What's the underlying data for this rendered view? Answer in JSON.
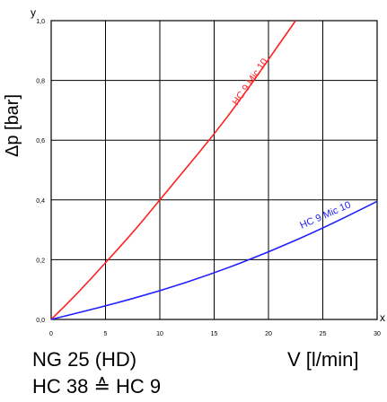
{
  "chart_data": {
    "type": "line",
    "title": "",
    "xlabel": "V [l/min]",
    "ylabel": "Δp [bar]",
    "x_axis_letter": "x",
    "y_axis_letter": "y",
    "xlim": [
      0,
      30
    ],
    "ylim": [
      0,
      1.0
    ],
    "x_ticks": [
      0,
      5,
      10,
      15,
      20,
      25,
      30
    ],
    "x_tick_labels": [
      "0",
      "5",
      "10",
      "15",
      "20",
      "25",
      "30"
    ],
    "y_ticks": [
      0,
      0.2,
      0.4,
      0.6,
      0.8,
      1.0
    ],
    "y_tick_labels": [
      "0,0",
      "0,2",
      "0,4",
      "0,6",
      "0,8",
      "1,0"
    ],
    "grid": true,
    "series": [
      {
        "name": "HC 9 Mic 10",
        "color": "#ff2020",
        "x": [
          0,
          2.5,
          5,
          7.5,
          10,
          12.5,
          15,
          17.5,
          20,
          22.5
        ],
        "y": [
          0,
          0.09,
          0.19,
          0.29,
          0.4,
          0.51,
          0.62,
          0.74,
          0.87,
          1.0
        ]
      },
      {
        "name": "HC 9 Mic 10",
        "color": "#2020ff",
        "x": [
          0,
          5,
          10,
          15,
          20,
          25,
          30
        ],
        "y": [
          0,
          0.045,
          0.095,
          0.155,
          0.225,
          0.305,
          0.395
        ]
      }
    ]
  },
  "caption": {
    "line1": "NG 25 (HD)",
    "line2": "HC 38 ≙ HC 9"
  }
}
